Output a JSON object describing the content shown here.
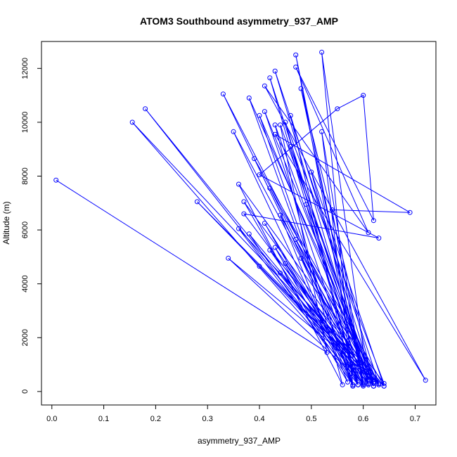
{
  "chart_data": {
    "type": "line",
    "title": "ATOM3 Southbound asymmetry_937_AMP",
    "xlabel": "asymmetry_937_AMP",
    "ylabel": "Altitude (m)",
    "xlim": [
      -0.02,
      0.74
    ],
    "ylim": [
      -500,
      13000
    ],
    "xticks": [
      0.0,
      0.1,
      0.2,
      0.3,
      0.4,
      0.5,
      0.6,
      0.7
    ],
    "xtick_labels": [
      "0.0",
      "0.1",
      "0.2",
      "0.3",
      "0.4",
      "0.5",
      "0.6",
      "0.7"
    ],
    "yticks": [
      0,
      2000,
      4000,
      6000,
      8000,
      10000,
      12000
    ],
    "ytick_labels": [
      "0",
      "2000",
      "4000",
      "6000",
      "8000",
      "10000",
      "12000"
    ],
    "grid": false,
    "line_color": "#0000ff",
    "marker": "open-circle",
    "series": [
      {
        "x": [
          0.008,
          0.53,
          0.44,
          0.62,
          0.46,
          0.58,
          0.52,
          0.61,
          0.43,
          0.63,
          0.155,
          0.6,
          0.47,
          0.59,
          0.42,
          0.61,
          0.18,
          0.6,
          0.33,
          0.62,
          0.48,
          0.6,
          0.52,
          0.58,
          0.38,
          0.63,
          0.28,
          0.62,
          0.41,
          0.59,
          0.45,
          0.64,
          0.36,
          0.56,
          0.43,
          0.61,
          0.35,
          0.58,
          0.4,
          0.62,
          0.46,
          0.6,
          0.39,
          0.64,
          0.5,
          0.61,
          0.42,
          0.63,
          0.37,
          0.57,
          0.44,
          0.62,
          0.49,
          0.59,
          0.41,
          0.6,
          0.34,
          0.63,
          0.47,
          0.61,
          0.43,
          0.58,
          0.38,
          0.62,
          0.45,
          0.6,
          0.42,
          0.64,
          0.36,
          0.59,
          0.48,
          0.61,
          0.4,
          0.63,
          0.44,
          0.6,
          0.54,
          0.69,
          0.43,
          0.72,
          0.41,
          0.61,
          0.47,
          0.62,
          0.6,
          0.55,
          0.4,
          0.63,
          0.37,
          0.62
        ],
        "y": [
          7850,
          1450,
          9900,
          350,
          10250,
          200,
          12600,
          250,
          11900,
          300,
          10000,
          200,
          12500,
          250,
          11650,
          300,
          10500,
          250,
          11050,
          300,
          11250,
          350,
          9650,
          200,
          10900,
          250,
          7050,
          300,
          10400,
          250,
          10000,
          300,
          7700,
          250,
          9900,
          300,
          9650,
          250,
          10250,
          200,
          9100,
          250,
          8650,
          200,
          8150,
          250,
          7550,
          300,
          7050,
          350,
          6550,
          200,
          6950,
          250,
          6250,
          300,
          4950,
          300,
          5650,
          250,
          5350,
          250,
          5850,
          300,
          4750,
          250,
          5250,
          200,
          6050,
          250,
          4950,
          300,
          4650,
          250,
          4400,
          250,
          6750,
          6650,
          9550,
          420,
          11350,
          5900,
          12050,
          6350,
          11000,
          10500,
          8050,
          5700,
          6600,
          200
        ]
      }
    ]
  }
}
